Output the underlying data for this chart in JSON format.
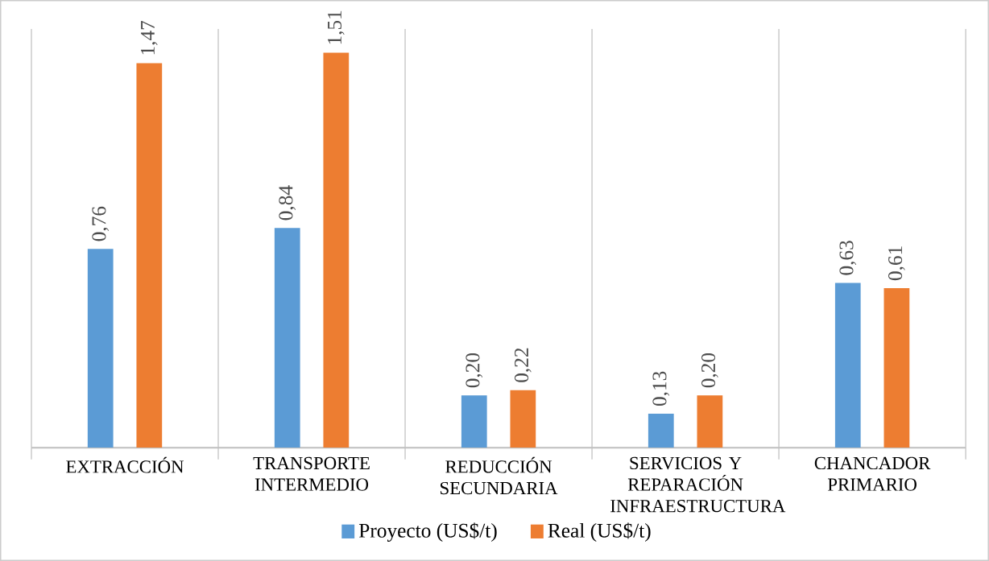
{
  "chart_data": {
    "type": "bar",
    "categories": [
      "EXTRACCIÓN",
      "TRANSPORTE INTERMEDIO",
      "REDUCCIÓN SECUNDARIA",
      "SERVICIOS Y REPARACIÓN INFRAESTRUCTURA",
      "CHANCADOR PRIMARIO"
    ],
    "series": [
      {
        "name": "Proyecto (US$/t)",
        "color": "#5b9bd5",
        "values": [
          0.76,
          0.84,
          0.2,
          0.13,
          0.63
        ],
        "value_labels": [
          "0,76",
          "0,84",
          "0,20",
          "0,13",
          "0,63"
        ]
      },
      {
        "name": "Real (US$/t)",
        "color": "#ed7d31",
        "values": [
          1.47,
          1.51,
          0.22,
          0.2,
          0.61
        ],
        "value_labels": [
          "1,47",
          "1,51",
          "0,22",
          "0,20",
          "0,61"
        ]
      }
    ],
    "grid": "x",
    "legend": "bottom"
  }
}
